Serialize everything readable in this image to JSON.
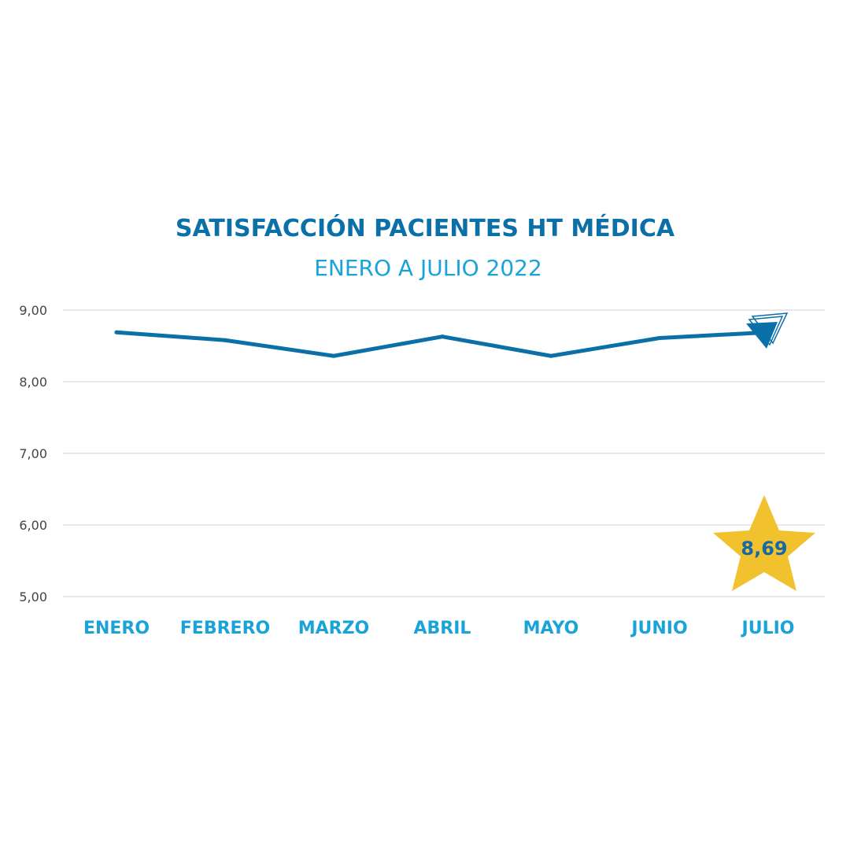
{
  "chart_data": {
    "type": "line",
    "title": "SATISFACCIÓN PACIENTES HT MÉDICA",
    "subtitle": "ENERO A JULIO 2022",
    "categories": [
      "ENERO",
      "FEBRERO",
      "MARZO",
      "ABRIL",
      "MAYO",
      "JUNIO",
      "JULIO"
    ],
    "series": [
      {
        "values": [
          8.69,
          8.58,
          8.36,
          8.63,
          8.36,
          8.61,
          8.69
        ]
      }
    ],
    "ylim": [
      5,
      9
    ],
    "yticks": [
      "9,00",
      "8,00",
      "7,00",
      "6,00",
      "5,00"
    ],
    "ytick_values": [
      9,
      8,
      7,
      6,
      5
    ],
    "grid": true,
    "legend": "none",
    "highlight": {
      "label": "8,69",
      "marker": "star",
      "color": "#f2c12e"
    },
    "end_marker": "arrow-icon",
    "colors": {
      "line": "#0b6fa8",
      "title": "#0b6fa8",
      "subtitle": "#1aa3d8",
      "xtick": "#1aa3d8",
      "grid": "#d9d9d9"
    }
  }
}
